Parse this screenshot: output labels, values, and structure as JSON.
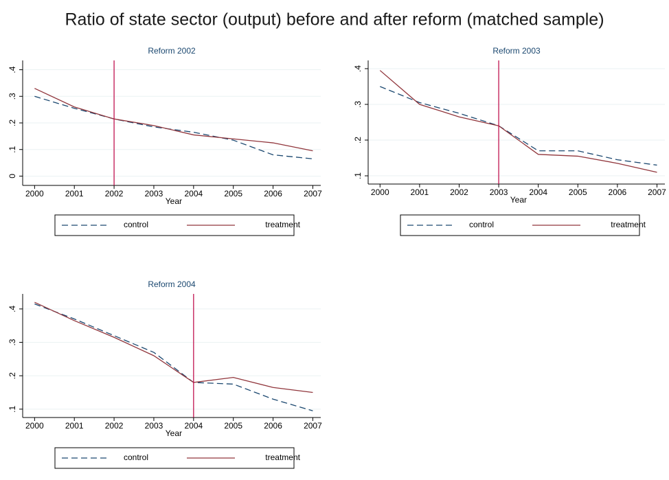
{
  "title": "Ratio of state sector (output) before and after reform (matched sample)",
  "chart_data": [
    {
      "type": "line",
      "title": "Reform 2002",
      "xlabel": "Year",
      "x": [
        2000,
        2001,
        2002,
        2003,
        2004,
        2005,
        2006,
        2007
      ],
      "xlim": [
        1999.7,
        2007.2
      ],
      "xticks": [
        2000,
        2001,
        2002,
        2003,
        2004,
        2005,
        2006,
        2007
      ],
      "ylim": [
        -0.035,
        0.435
      ],
      "yticks": [
        0,
        {
          "value": 0.1,
          "label": ".1"
        },
        {
          "value": 0.2,
          "label": ".2"
        },
        {
          "value": 0.3,
          "label": ".3"
        },
        {
          "value": 0.4,
          "label": ".4"
        }
      ],
      "grid": true,
      "reform_line": 2002,
      "reform_color": "#c0124f",
      "series": [
        {
          "name": "control",
          "color": "#1a476f",
          "dashed": true,
          "values": [
            0.3,
            0.255,
            0.215,
            0.185,
            0.165,
            0.135,
            0.08,
            0.065
          ]
        },
        {
          "name": "treatment",
          "color": "#90353b",
          "dashed": false,
          "values": [
            0.33,
            0.26,
            0.215,
            0.19,
            0.155,
            0.14,
            0.125,
            0.095
          ]
        }
      ]
    },
    {
      "type": "line",
      "title": "Reform 2003",
      "xlabel": "Year",
      "x": [
        2000,
        2001,
        2002,
        2003,
        2004,
        2005,
        2006,
        2007
      ],
      "xlim": [
        1999.7,
        2007.2
      ],
      "xticks": [
        2000,
        2001,
        2002,
        2003,
        2004,
        2005,
        2006,
        2007
      ],
      "ylim": [
        0.077,
        0.423
      ],
      "yticks": [
        {
          "value": 0.1,
          "label": ".1"
        },
        {
          "value": 0.2,
          "label": ".2"
        },
        {
          "value": 0.3,
          "label": ".3"
        },
        {
          "value": 0.4,
          "label": ".4"
        }
      ],
      "grid": true,
      "reform_line": 2003,
      "reform_color": "#c0124f",
      "series": [
        {
          "name": "control",
          "color": "#1a476f",
          "dashed": true,
          "values": [
            0.35,
            0.305,
            0.275,
            0.24,
            0.17,
            0.17,
            0.145,
            0.13
          ]
        },
        {
          "name": "treatment",
          "color": "#90353b",
          "dashed": false,
          "values": [
            0.395,
            0.3,
            0.265,
            0.24,
            0.16,
            0.155,
            0.135,
            0.11
          ]
        }
      ]
    },
    {
      "type": "line",
      "title": "Reform 2004",
      "xlabel": "Year",
      "x": [
        2000,
        2001,
        2002,
        2003,
        2004,
        2005,
        2006,
        2007
      ],
      "xlim": [
        1999.7,
        2007.2
      ],
      "xticks": [
        2000,
        2001,
        2002,
        2003,
        2004,
        2005,
        2006,
        2007
      ],
      "ylim": [
        0.075,
        0.445
      ],
      "yticks": [
        {
          "value": 0.1,
          "label": ".1"
        },
        {
          "value": 0.2,
          "label": ".2"
        },
        {
          "value": 0.3,
          "label": ".3"
        },
        {
          "value": 0.4,
          "label": ".4"
        }
      ],
      "grid": true,
      "reform_line": 2004,
      "reform_color": "#c0124f",
      "series": [
        {
          "name": "control",
          "color": "#1a476f",
          "dashed": true,
          "values": [
            0.415,
            0.37,
            0.32,
            0.27,
            0.18,
            0.175,
            0.13,
            0.095
          ]
        },
        {
          "name": "treatment",
          "color": "#90353b",
          "dashed": false,
          "values": [
            0.42,
            0.365,
            0.315,
            0.26,
            0.18,
            0.195,
            0.165,
            0.15
          ]
        }
      ]
    }
  ]
}
